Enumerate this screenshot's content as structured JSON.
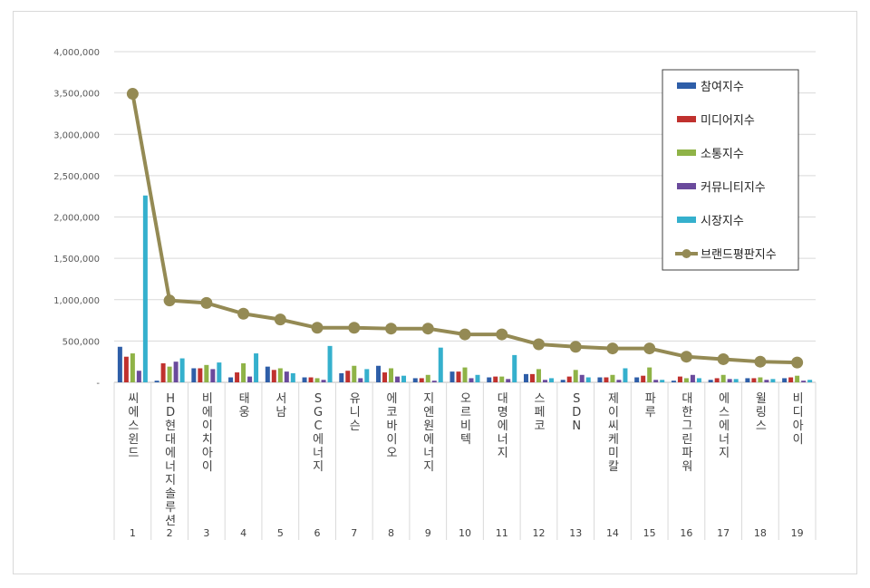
{
  "chart_data": {
    "type": "bar+line",
    "categories": [
      "씨에스윈드",
      "HD현대에너지솔루션",
      "비에이치아이",
      "태웅",
      "서남",
      "SGC에너지",
      "유니슨",
      "에코바이오",
      "지엔원에너지",
      "오르비텍",
      "대명에너지",
      "스페코",
      "SDN",
      "제이씨케미칼",
      "파루",
      "대한그린파워",
      "에스에너지",
      "윌링스",
      "비디아이"
    ],
    "ranks": [
      "1",
      "2",
      "3",
      "4",
      "5",
      "6",
      "7",
      "8",
      "9",
      "10",
      "11",
      "12",
      "13",
      "14",
      "15",
      "16",
      "17",
      "18",
      "19"
    ],
    "ylim": [
      0,
      4000000
    ],
    "yticks": [
      0,
      500000,
      1000000,
      1500000,
      2000000,
      2500000,
      3000000,
      3500000,
      4000000
    ],
    "ytick_labels": [
      "-",
      "500,000",
      "1,000,000",
      "1,500,000",
      "2,000,000",
      "2,500,000",
      "3,000,000",
      "3,500,000",
      "4,000,000"
    ],
    "grid": true,
    "legend_position": "top-right",
    "series": [
      {
        "name": "참여지수",
        "type": "bar",
        "color": "#2e5ea8",
        "values": [
          430000,
          20000,
          170000,
          60000,
          190000,
          60000,
          110000,
          200000,
          50000,
          130000,
          60000,
          100000,
          30000,
          60000,
          60000,
          20000,
          30000,
          50000,
          50000
        ]
      },
      {
        "name": "미디어지수",
        "type": "bar",
        "color": "#c0312e",
        "values": [
          310000,
          230000,
          170000,
          120000,
          150000,
          60000,
          140000,
          120000,
          50000,
          130000,
          70000,
          100000,
          70000,
          60000,
          80000,
          70000,
          50000,
          50000,
          60000
        ]
      },
      {
        "name": "소통지수",
        "type": "bar",
        "color": "#8fb347",
        "values": [
          350000,
          190000,
          210000,
          230000,
          170000,
          50000,
          200000,
          170000,
          90000,
          180000,
          70000,
          160000,
          150000,
          90000,
          180000,
          50000,
          90000,
          60000,
          80000
        ]
      },
      {
        "name": "커뮤니티지수",
        "type": "bar",
        "color": "#6a4a9c",
        "values": [
          140000,
          250000,
          160000,
          70000,
          130000,
          30000,
          50000,
          70000,
          20000,
          50000,
          40000,
          30000,
          90000,
          30000,
          30000,
          90000,
          40000,
          30000,
          20000
        ]
      },
      {
        "name": "시장지수",
        "type": "bar",
        "color": "#35b0cd",
        "values": [
          2260000,
          290000,
          240000,
          350000,
          110000,
          440000,
          160000,
          80000,
          420000,
          90000,
          330000,
          50000,
          60000,
          170000,
          30000,
          50000,
          40000,
          40000,
          30000
        ]
      },
      {
        "name": "브랜드평판지수",
        "type": "line",
        "color": "#948a54",
        "values": [
          3490000,
          990000,
          960000,
          830000,
          760000,
          660000,
          660000,
          650000,
          650000,
          580000,
          580000,
          460000,
          430000,
          410000,
          410000,
          310000,
          280000,
          250000,
          240000
        ]
      }
    ]
  }
}
